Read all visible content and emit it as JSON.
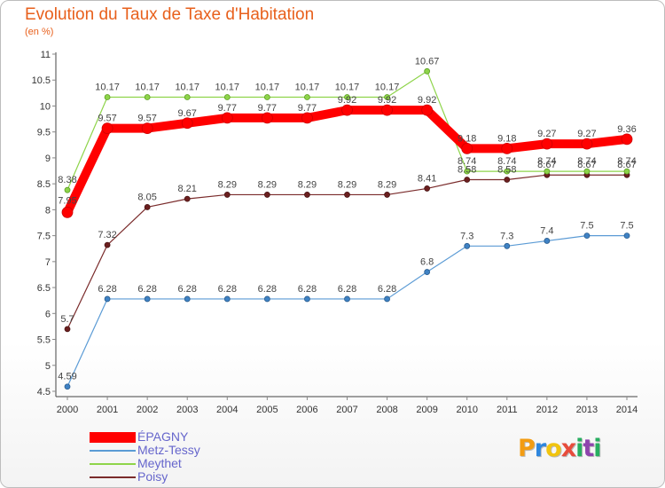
{
  "chart_data": {
    "type": "line",
    "title": "Evolution du Taux de Taxe d'Habitation",
    "subtitle": "(en %)",
    "x": [
      "2000",
      "2001",
      "2002",
      "2003",
      "2004",
      "2005",
      "2006",
      "2007",
      "2008",
      "2009",
      "2010",
      "2011",
      "2012",
      "2013",
      "2014"
    ],
    "ylim": [
      4.5,
      11
    ],
    "yticks": [
      "4.5",
      "5",
      "5.5",
      "6",
      "6.5",
      "7",
      "7.5",
      "8",
      "8.5",
      "9",
      "9.5",
      "10",
      "10.5",
      "11"
    ],
    "grid": false,
    "legend_position": "bottom-left",
    "series": [
      {
        "name": "ÉPAGNY",
        "color": "#ff0000",
        "values": [
          7.95,
          9.57,
          9.57,
          9.67,
          9.77,
          9.77,
          9.77,
          9.92,
          9.92,
          9.92,
          9.18,
          9.18,
          9.27,
          9.27,
          9.36
        ],
        "labels": [
          "7.95",
          "9.57",
          "9.57",
          "9.67",
          "9.77",
          "9.77",
          "9.77",
          "9.92",
          "9.92",
          "9.92",
          "9.18",
          "9.18",
          "9.27",
          "9.27",
          "9.36"
        ]
      },
      {
        "name": "Metz-Tessy",
        "color": "#5b9bd5",
        "values": [
          4.59,
          6.28,
          6.28,
          6.28,
          6.28,
          6.28,
          6.28,
          6.28,
          6.28,
          6.8,
          7.3,
          7.3,
          7.4,
          7.5,
          7.5
        ],
        "labels": [
          "4.59",
          "6.28",
          "6.28",
          "6.28",
          "6.28",
          "6.28",
          "6.28",
          "6.28",
          "6.28",
          "6.8",
          "7.3",
          "7.3",
          "7.4",
          "7.5",
          "7.5"
        ]
      },
      {
        "name": "Meythet",
        "color": "#8ed44a",
        "values": [
          8.38,
          10.17,
          10.17,
          10.17,
          10.17,
          10.17,
          10.17,
          10.17,
          10.17,
          10.67,
          8.74,
          8.74,
          8.74,
          8.74,
          8.74
        ],
        "labels": [
          "8.38",
          "10.17",
          "10.17",
          "10.17",
          "10.17",
          "10.17",
          "10.17",
          "10.17",
          "10.17",
          "10.67",
          "8.74",
          "8.74",
          "8.74",
          "8.74",
          "8.74"
        ]
      },
      {
        "name": "Poisy",
        "color": "#7a2b2b",
        "values": [
          5.7,
          7.32,
          8.05,
          8.21,
          8.29,
          8.29,
          8.29,
          8.29,
          8.29,
          8.41,
          8.58,
          8.58,
          8.67,
          8.67,
          8.67
        ],
        "labels": [
          "5.7",
          "7.32",
          "8.05",
          "8.21",
          "8.29",
          "8.29",
          "8.29",
          "8.29",
          "8.29",
          "8.41",
          "8.58",
          "8.58",
          "8.67",
          "8.67",
          "8.67"
        ]
      }
    ]
  },
  "logo": {
    "letters": [
      "P",
      "r",
      "o",
      "x",
      "i",
      "t",
      "i"
    ],
    "colors": [
      "#f39c12",
      "#2e86de",
      "#f1c40f",
      "#e74c3c",
      "#27ae60",
      "#8e44ad",
      "#27ae60"
    ]
  }
}
